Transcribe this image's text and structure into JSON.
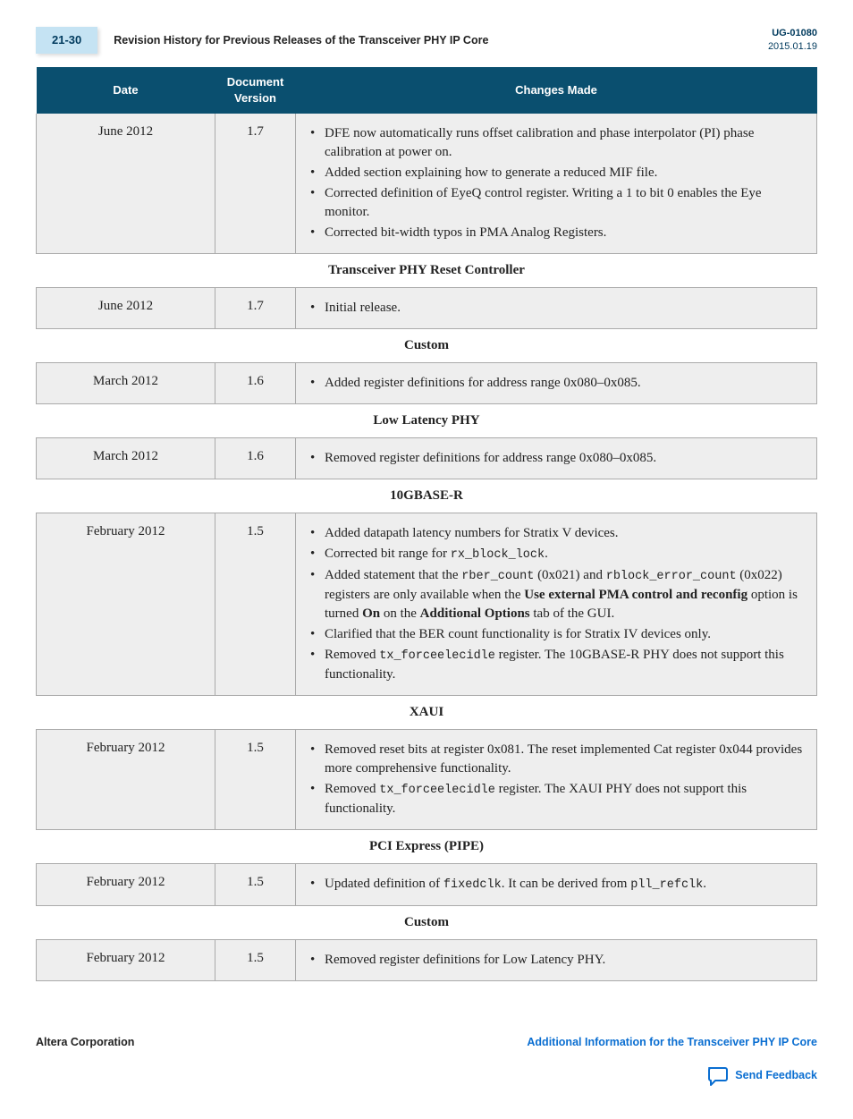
{
  "header": {
    "page_num": "21-30",
    "title": "Revision History for Previous Releases of the Transceiver PHY IP Core",
    "doc_id": "UG-01080",
    "doc_date": "2015.01.19"
  },
  "columns": [
    "Date",
    "Document Version",
    "Changes Made"
  ],
  "rows": [
    {
      "date": "June 2012",
      "ver": "1.7",
      "changes": [
        "DFE now automatically runs offset calibration and phase interpolator (PI) phase calibration at power on.",
        "Added section explaining how to generate a reduced MIF file.",
        "Corrected definition of EyeQ control register. Writing a 1 to bit 0 enables the Eye monitor.",
        "Corrected bit-width typos in PMA Analog Registers."
      ]
    },
    {
      "section": "Transceiver PHY Reset Controller"
    },
    {
      "date": "June 2012",
      "ver": "1.7",
      "changes": [
        "Initial release."
      ]
    },
    {
      "section": "Custom"
    },
    {
      "date": "March 2012",
      "ver": "1.6",
      "changes": [
        "Added register definitions for address range 0x080–0x085."
      ]
    },
    {
      "section": "Low Latency PHY"
    },
    {
      "date": "March 2012",
      "ver": "1.6",
      "changes": [
        "Removed register definitions for address range 0x080–0x085."
      ]
    },
    {
      "section": "10GBASE-R"
    },
    {
      "date": "February 2012",
      "ver": "1.5",
      "changes": [
        "Added datapath latency numbers for Stratix V devices.",
        "Corrected bit range for <span class=\"mono\">rx_block_lock</span>.",
        "Added statement that the <span class=\"mono\">rber_count</span> (0x021) and <span class=\"mono\">rblock_error_count</span> (0x022) registers are only available when the <b>Use external PMA control and reconfig</b> option is turned <b>On</b> on the <b>Additional Options</b> tab of the GUI.",
        "Clarified that the BER count functionality is for Stratix IV devices only.",
        "Removed <span class=\"mono\">tx_forceelecidle</span> register. The 10GBASE-R PHY does not support this functionality."
      ]
    },
    {
      "section": "XAUI"
    },
    {
      "date": "February 2012",
      "ver": "1.5",
      "changes": [
        "Removed reset bits at register 0x081. The reset implemented Cat register 0x044 provides more comprehensive functionality.",
        "Removed <span class=\"mono\">tx_forceelecidle</span> register. The XAUI PHY does not support this functionality."
      ]
    },
    {
      "section": "PCI Express (PIPE)"
    },
    {
      "date": "February 2012",
      "ver": "1.5",
      "changes": [
        "Updated definition of <span class=\"mono\">fixedclk</span>. It can be derived from <span class=\"mono\">pll_refclk</span>."
      ]
    },
    {
      "section": "Custom"
    },
    {
      "date": "February 2012",
      "ver": "1.5",
      "changes": [
        "Removed register definitions for Low Latency PHY."
      ]
    }
  ],
  "footer": {
    "left": "Altera Corporation",
    "right_link": "Additional Information for the Transceiver PHY IP Core",
    "feedback": "Send Feedback"
  },
  "colors": {
    "header_bg": "#0a4f6f",
    "header_text": "#ffffff",
    "cell_bg": "#eeeeee",
    "border": "#aaaaaa",
    "pagebox_bg": "#c5e3f3",
    "link": "#0a6ed1",
    "docid": "#003a5d"
  }
}
